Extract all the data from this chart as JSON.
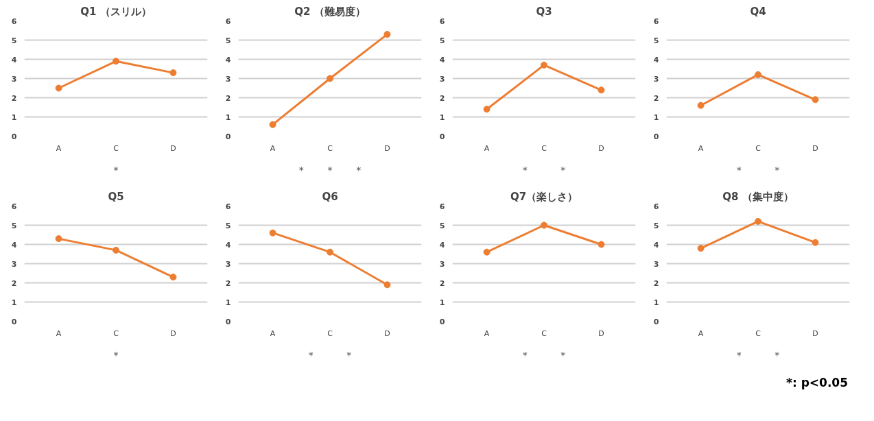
{
  "chart_data": [
    {
      "type": "line",
      "title": "Q1 （スリル）",
      "categories": [
        "A",
        "C",
        "D"
      ],
      "series": [
        {
          "color": "#ed7d31",
          "values": [
            2.5,
            3.9,
            3.3
          ]
        }
      ],
      "ylim": [
        0,
        6
      ],
      "yticks": [
        0,
        1,
        2,
        3,
        4,
        5,
        6
      ],
      "grid": "y",
      "marker": "circle",
      "annotations": [
        "*"
      ]
    },
    {
      "type": "line",
      "title": "Q2 （難易度）",
      "categories": [
        "A",
        "C",
        "D"
      ],
      "series": [
        {
          "color": "#ed7d31",
          "values": [
            0.6,
            3.0,
            5.3
          ]
        }
      ],
      "ylim": [
        0,
        6
      ],
      "yticks": [
        0,
        1,
        2,
        3,
        4,
        5,
        6
      ],
      "grid": "y",
      "marker": "circle",
      "annotations": [
        "*",
        "*",
        "*"
      ]
    },
    {
      "type": "line",
      "title": "Q3",
      "categories": [
        "A",
        "C",
        "D"
      ],
      "series": [
        {
          "color": "#ed7d31",
          "values": [
            1.4,
            3.7,
            2.4
          ]
        }
      ],
      "ylim": [
        0,
        6
      ],
      "yticks": [
        0,
        1,
        2,
        3,
        4,
        5,
        6
      ],
      "grid": "y",
      "marker": "circle",
      "annotations": [
        "*",
        "*"
      ]
    },
    {
      "type": "line",
      "title": "Q4",
      "categories": [
        "A",
        "C",
        "D"
      ],
      "series": [
        {
          "color": "#ed7d31",
          "values": [
            1.6,
            3.2,
            1.9
          ]
        }
      ],
      "ylim": [
        0,
        6
      ],
      "yticks": [
        0,
        1,
        2,
        3,
        4,
        5,
        6
      ],
      "grid": "y",
      "marker": "circle",
      "annotations": [
        "*",
        "*"
      ]
    },
    {
      "type": "line",
      "title": "Q5",
      "categories": [
        "A",
        "C",
        "D"
      ],
      "series": [
        {
          "color": "#ed7d31",
          "values": [
            4.3,
            3.7,
            2.3
          ]
        }
      ],
      "ylim": [
        0,
        6
      ],
      "yticks": [
        0,
        1,
        2,
        3,
        4,
        5,
        6
      ],
      "grid": "y",
      "marker": "circle",
      "annotations": [
        "*"
      ]
    },
    {
      "type": "line",
      "title": "Q6",
      "categories": [
        "A",
        "C",
        "D"
      ],
      "series": [
        {
          "color": "#ed7d31",
          "values": [
            4.6,
            3.6,
            1.9
          ]
        }
      ],
      "ylim": [
        0,
        6
      ],
      "yticks": [
        0,
        1,
        2,
        3,
        4,
        5,
        6
      ],
      "grid": "y",
      "marker": "circle",
      "annotations": [
        "*",
        "*"
      ]
    },
    {
      "type": "line",
      "title": "Q7（楽しさ）",
      "categories": [
        "A",
        "C",
        "D"
      ],
      "series": [
        {
          "color": "#ed7d31",
          "values": [
            3.6,
            5.0,
            4.0
          ]
        }
      ],
      "ylim": [
        0,
        6
      ],
      "yticks": [
        0,
        1,
        2,
        3,
        4,
        5,
        6
      ],
      "grid": "y",
      "marker": "circle",
      "annotations": [
        "*",
        "*"
      ]
    },
    {
      "type": "line",
      "title": "Q8 （集中度）",
      "categories": [
        "A",
        "C",
        "D"
      ],
      "series": [
        {
          "color": "#ed7d31",
          "values": [
            3.8,
            5.2,
            4.1
          ]
        }
      ],
      "ylim": [
        0,
        6
      ],
      "yticks": [
        0,
        1,
        2,
        3,
        4,
        5,
        6
      ],
      "grid": "y",
      "marker": "circle",
      "annotations": [
        "*",
        "*"
      ]
    },
    {
      "type": "other",
      "annotations": [
        "*: p<0.05"
      ]
    }
  ]
}
